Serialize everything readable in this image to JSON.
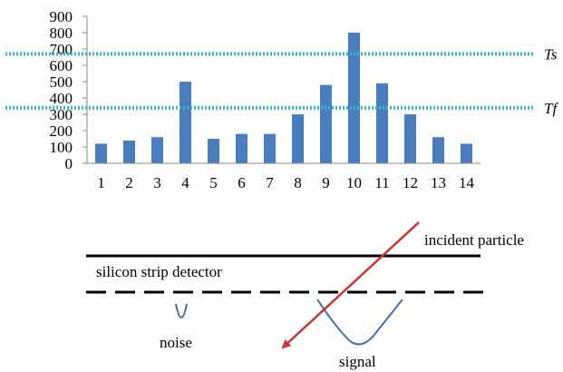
{
  "chart_data": {
    "type": "bar",
    "categories": [
      "1",
      "2",
      "3",
      "4",
      "5",
      "6",
      "7",
      "8",
      "9",
      "10",
      "11",
      "12",
      "13",
      "14"
    ],
    "values": [
      120,
      140,
      160,
      500,
      150,
      180,
      180,
      300,
      480,
      800,
      490,
      300,
      160,
      120
    ],
    "ylim": [
      0,
      900
    ],
    "yticks": [
      "0",
      "100",
      "200",
      "300",
      "400",
      "500",
      "600",
      "700",
      "800",
      "900"
    ],
    "thresholds": [
      {
        "label": "Ts",
        "value": 670
      },
      {
        "label": "Tf",
        "value": 340
      }
    ],
    "bar_color": "#4a7dc0",
    "threshold_color": "#39b5cc",
    "grid": false,
    "legend": "none"
  },
  "diagram": {
    "detector_label": "silicon strip detector",
    "particle_label": "incident particle",
    "noise_label": "noise",
    "signal_label": "signal",
    "pulse_color": "#3f6fb0",
    "arrow_color": "#c8352e"
  }
}
